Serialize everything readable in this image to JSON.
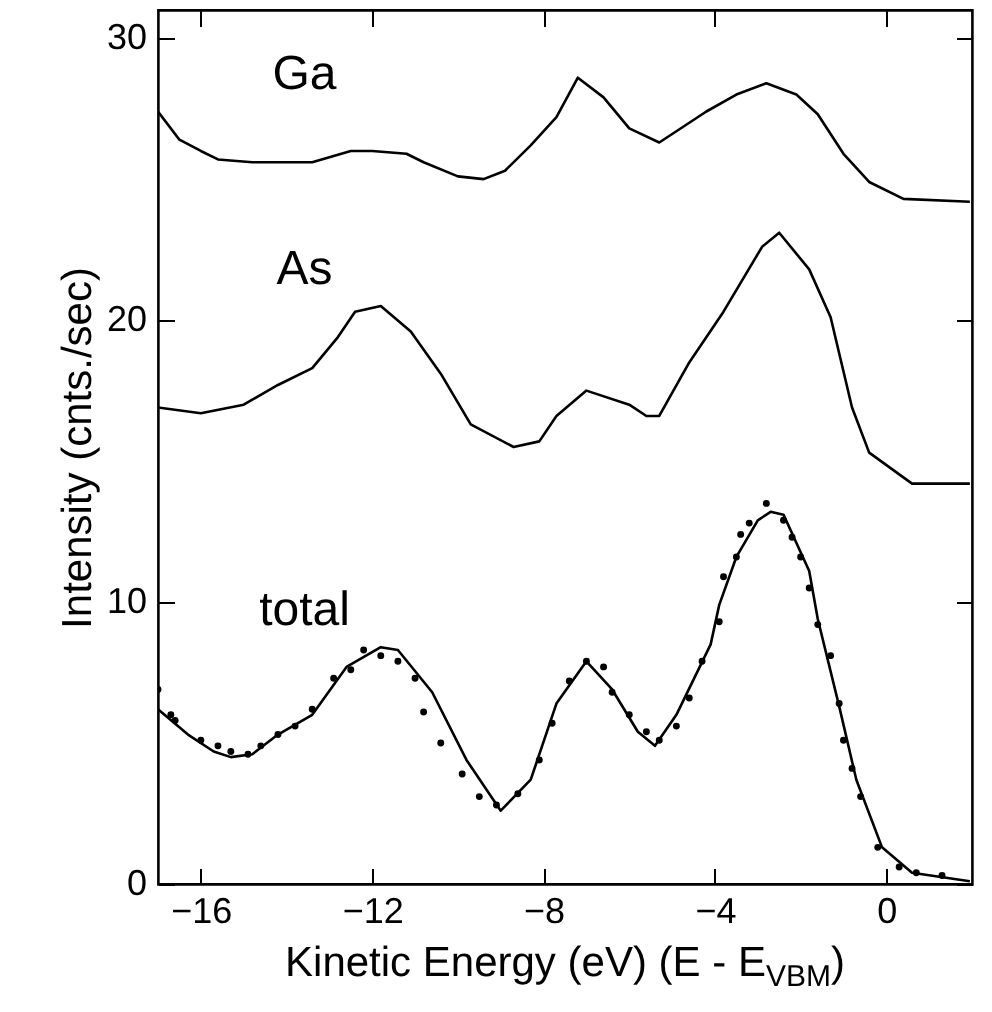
{
  "chart_data": {
    "type": "line",
    "xlabel": "Kinetic Energy (eV) (E - E$_{VBM}$)",
    "ylabel": "Intensity (cnts./sec)",
    "xlim": [
      -17,
      2
    ],
    "ylim": [
      0,
      31
    ],
    "xticks": [
      -16,
      -12,
      -8,
      -4,
      0
    ],
    "yticks": [
      0,
      10,
      20,
      30
    ],
    "series": [
      {
        "name": "Ga",
        "type": "line",
        "color": "#000000",
        "x": [
          -17,
          -16.5,
          -16,
          -15.6,
          -14.8,
          -13.9,
          -13.4,
          -12.5,
          -12,
          -11.2,
          -10.8,
          -10,
          -9.4,
          -8.9,
          -8.3,
          -7.7,
          -7.2,
          -6.6,
          -6,
          -5.3,
          -4.9,
          -4.2,
          -3.5,
          -2.8,
          -2.1,
          -1.6,
          -1,
          -0.4,
          0.4,
          1.95
        ],
        "values": [
          27.4,
          26.4,
          26,
          25.7,
          25.6,
          25.6,
          25.6,
          26,
          26,
          25.9,
          25.6,
          25.1,
          25,
          25.3,
          26.2,
          27.2,
          28.6,
          27.9,
          26.8,
          26.3,
          26.7,
          27.4,
          28,
          28.4,
          28,
          27.3,
          25.9,
          24.9,
          24.3,
          24.2
        ]
      },
      {
        "name": "As",
        "type": "line",
        "color": "#000000",
        "x": [
          -17,
          -16,
          -15,
          -14.2,
          -13.4,
          -12.8,
          -12.4,
          -11.8,
          -11.1,
          -10.4,
          -9.7,
          -8.7,
          -8.1,
          -7.7,
          -7,
          -6,
          -5.6,
          -5.3,
          -4.6,
          -3.8,
          -2.9,
          -2.5,
          -1.8,
          -1.3,
          -0.8,
          -0.4,
          0.6,
          1.95
        ],
        "values": [
          16.9,
          16.7,
          17,
          17.7,
          18.3,
          19.4,
          20.3,
          20.5,
          19.6,
          18.1,
          16.3,
          15.5,
          15.7,
          16.6,
          17.5,
          17,
          16.6,
          16.6,
          18.5,
          20.3,
          22.6,
          23.1,
          21.8,
          20.1,
          16.9,
          15.3,
          14.2,
          14.2
        ]
      },
      {
        "name": "total",
        "type": "line",
        "color": "#000000",
        "x": [
          -17,
          -16.3,
          -15.7,
          -15.3,
          -14.8,
          -14.2,
          -13.4,
          -12.6,
          -11.8,
          -11.4,
          -10.6,
          -9.8,
          -9,
          -8.3,
          -7.7,
          -7,
          -6.4,
          -5.8,
          -5.4,
          -4.9,
          -4.1,
          -3.9,
          -3.5,
          -3,
          -2.7,
          -2.4,
          -1.8,
          -1.6,
          -1.1,
          -0.7,
          -0.1,
          0.6,
          1.95
        ],
        "values": [
          6.2,
          5.3,
          4.7,
          4.5,
          4.6,
          5.3,
          6,
          7.7,
          8.4,
          8.3,
          6.8,
          4.4,
          2.6,
          3.7,
          6.4,
          7.9,
          6.9,
          5.4,
          4.9,
          6,
          8.5,
          9.9,
          11.6,
          12.9,
          13.2,
          13.1,
          11.1,
          9.4,
          6.3,
          3.7,
          1.3,
          0.4,
          0.1
        ]
      },
      {
        "type": "scatter",
        "marker": "circle",
        "color": "#000000",
        "x": [
          -17,
          -16.7,
          -16.6,
          -16,
          -15.6,
          -15.3,
          -14.9,
          -14.6,
          -14.2,
          -13.8,
          -13.4,
          -12.9,
          -12.5,
          -12.2,
          -11.8,
          -11.4,
          -11,
          -10.8,
          -10.4,
          -9.9,
          -9.5,
          -9.1,
          -8.6,
          -8.1,
          -7.8,
          -7.4,
          -7,
          -6.6,
          -6.4,
          -6,
          -5.6,
          -5.3,
          -4.9,
          -4.6,
          -4.3,
          -3.9,
          -3.8,
          -3.5,
          -3.4,
          -3.2,
          -2.8,
          -2.4,
          -2.2,
          -2,
          -1.8,
          -1.6,
          -1.3,
          -1.1,
          -1,
          -0.8,
          -0.6,
          -0.2,
          0.3,
          0.7,
          1.3
        ],
        "values": [
          6.9,
          6,
          5.8,
          5.1,
          4.9,
          4.7,
          4.6,
          4.9,
          5.3,
          5.6,
          6.2,
          7.3,
          7.6,
          8.3,
          8.1,
          7.9,
          7.3,
          6.1,
          5,
          3.9,
          3.1,
          2.8,
          3.2,
          4.4,
          5.7,
          7.2,
          7.9,
          7.7,
          6.8,
          6,
          5.4,
          5.1,
          5.6,
          6.6,
          7.9,
          9.3,
          10.9,
          11.6,
          12.4,
          12.8,
          13.5,
          12.9,
          12.3,
          11.6,
          10.5,
          9.2,
          8.1,
          6.4,
          5.1,
          4.1,
          3.1,
          1.3,
          0.6,
          0.4,
          0.3
        ]
      }
    ]
  }
}
